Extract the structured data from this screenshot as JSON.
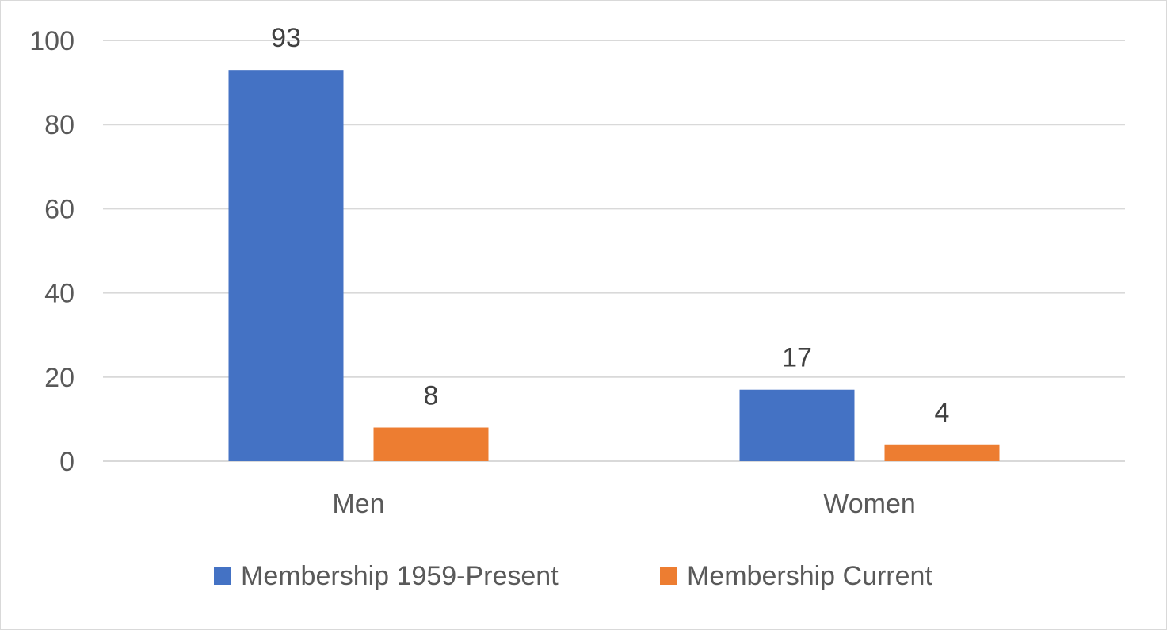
{
  "chart_data": {
    "type": "bar",
    "categories": [
      "Men",
      "Women"
    ],
    "series": [
      {
        "name": "Membership 1959-Present",
        "values": [
          93,
          17
        ],
        "color": "#4472C4"
      },
      {
        "name": "Membership Current",
        "values": [
          8,
          4
        ],
        "color": "#ED7D31"
      }
    ],
    "yticks": [
      0,
      20,
      40,
      60,
      80,
      100
    ],
    "ylim": [
      0,
      100
    ],
    "grid": true,
    "legend": "bottom",
    "data_labels": true,
    "gridline_color": "#d9d9d9"
  }
}
